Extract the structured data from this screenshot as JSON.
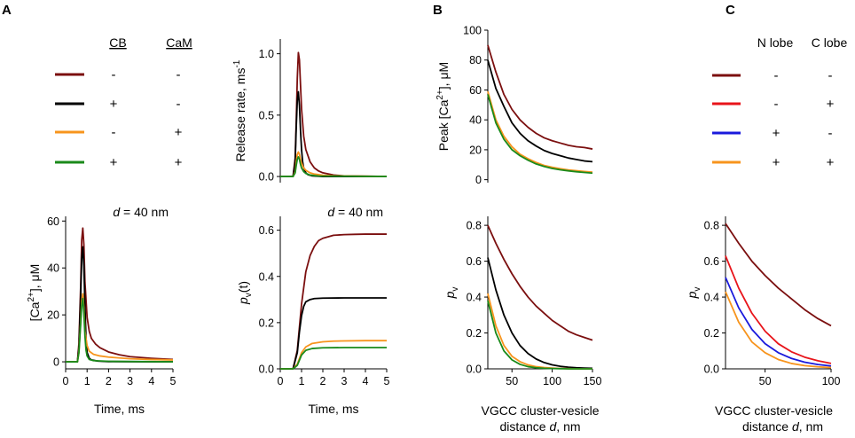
{
  "panels": {
    "A": "A",
    "B": "B",
    "C": "C"
  },
  "legendA": {
    "headers": [
      "CB",
      "CaM"
    ],
    "rows": [
      {
        "color": "#7b0f0f",
        "signs": [
          "-",
          "-"
        ]
      },
      {
        "color": "#000000",
        "signs": [
          "+",
          "-"
        ]
      },
      {
        "color": "#f7941d",
        "signs": [
          "-",
          "+"
        ]
      },
      {
        "color": "#1a8a1a",
        "signs": [
          "+",
          "+"
        ]
      }
    ]
  },
  "legendC": {
    "headers": [
      "N lobe",
      "C lobe"
    ],
    "rows": [
      {
        "color": "#7b0f0f",
        "signs": [
          "-",
          "-"
        ]
      },
      {
        "color": "#e8141a",
        "signs": [
          "-",
          "+"
        ]
      },
      {
        "color": "#1a1adc",
        "signs": [
          "+",
          "-"
        ]
      },
      {
        "color": "#f7941d",
        "signs": [
          "+",
          "+"
        ]
      }
    ]
  },
  "chart_data": [
    {
      "id": "ca",
      "type": "line",
      "annotation": {
        "italic": "d",
        "rest": " = 40 nm"
      },
      "xlabel": "Time, ms",
      "ylabel": {
        "main": "[Ca",
        "sup": "2+",
        "rest": "], μM"
      },
      "xlim": [
        0,
        5
      ],
      "ylim": [
        -3,
        62
      ],
      "xticks": [
        0,
        1,
        2,
        3,
        4,
        5
      ],
      "yticks": [
        0,
        20,
        40,
        60
      ],
      "series": [
        {
          "name": "CB- CaM-",
          "color": "#7b0f0f",
          "x": [
            0,
            0.55,
            0.62,
            0.7,
            0.75,
            0.8,
            0.85,
            0.9,
            1.0,
            1.1,
            1.2,
            1.4,
            1.6,
            2.0,
            2.5,
            3.0,
            4.0,
            5.0
          ],
          "y": [
            0,
            0,
            8,
            32,
            52,
            57,
            50,
            34,
            19,
            13,
            10,
            7.5,
            6,
            4.2,
            3,
            2.2,
            1.5,
            1
          ]
        },
        {
          "name": "CB+ CaM-",
          "color": "#000000",
          "x": [
            0,
            0.55,
            0.62,
            0.7,
            0.75,
            0.8,
            0.85,
            0.9,
            0.95,
            1.0,
            1.1,
            1.2,
            1.5,
            2.0,
            5.0
          ],
          "y": [
            0,
            0,
            6,
            28,
            44,
            49,
            41,
            24,
            10,
            4,
            1.5,
            0.8,
            0.3,
            0.1,
            0
          ]
        },
        {
          "name": "CB- CaM+",
          "color": "#f7941d",
          "x": [
            0,
            0.55,
            0.62,
            0.7,
            0.75,
            0.8,
            0.85,
            0.9,
            1.0,
            1.1,
            1.3,
            1.6,
            2.0,
            3.0,
            4.0,
            5.0
          ],
          "y": [
            0,
            0,
            4,
            17,
            26,
            29,
            23,
            13,
            7,
            4.5,
            3.2,
            2.5,
            2,
            1.3,
            1,
            0.8
          ]
        },
        {
          "name": "CB+ CaM+",
          "color": "#1a8a1a",
          "x": [
            0,
            0.55,
            0.62,
            0.7,
            0.75,
            0.8,
            0.85,
            0.9,
            0.95,
            1.0,
            1.1,
            1.3,
            2.0,
            5.0
          ],
          "y": [
            0,
            0,
            4,
            16,
            24,
            27,
            21,
            11,
            5,
            2.5,
            1,
            0.5,
            0.2,
            0
          ]
        }
      ]
    },
    {
      "id": "release",
      "type": "line",
      "xlabel": "",
      "ylabel": {
        "main": "Release rate, ms",
        "sup": "-1",
        "rest": ""
      },
      "xlim": [
        0,
        5
      ],
      "ylim": [
        -0.05,
        1.12
      ],
      "xticks": [],
      "yticks": [
        0.0,
        0.5,
        1.0
      ],
      "series": [
        {
          "name": "CB- CaM-",
          "color": "#7b0f0f",
          "x": [
            0,
            0.6,
            0.7,
            0.75,
            0.8,
            0.85,
            0.9,
            0.95,
            1.0,
            1.1,
            1.2,
            1.4,
            1.6,
            1.8,
            2.0,
            2.5,
            3.0,
            5.0
          ],
          "y": [
            0,
            0,
            0.15,
            0.45,
            0.8,
            1.01,
            0.95,
            0.75,
            0.55,
            0.33,
            0.22,
            0.12,
            0.07,
            0.045,
            0.03,
            0.012,
            0.005,
            0
          ]
        },
        {
          "name": "CB+ CaM-",
          "color": "#000000",
          "x": [
            0,
            0.6,
            0.7,
            0.75,
            0.8,
            0.85,
            0.9,
            0.95,
            1.0,
            1.05,
            1.1,
            1.2,
            1.3,
            1.5,
            2.0,
            5.0
          ],
          "y": [
            0,
            0,
            0.12,
            0.4,
            0.62,
            0.69,
            0.58,
            0.38,
            0.22,
            0.12,
            0.07,
            0.03,
            0.015,
            0.005,
            0,
            0
          ]
        },
        {
          "name": "CB- CaM+",
          "color": "#f7941d",
          "x": [
            0,
            0.6,
            0.7,
            0.75,
            0.8,
            0.85,
            0.9,
            0.95,
            1.0,
            1.1,
            1.2,
            1.4,
            1.6,
            2.0,
            2.5,
            5.0
          ],
          "y": [
            0,
            0,
            0.04,
            0.12,
            0.18,
            0.2,
            0.18,
            0.14,
            0.11,
            0.07,
            0.05,
            0.03,
            0.02,
            0.01,
            0.005,
            0
          ]
        },
        {
          "name": "CB+ CaM+",
          "color": "#1a8a1a",
          "x": [
            0,
            0.6,
            0.7,
            0.75,
            0.8,
            0.85,
            0.9,
            0.95,
            1.0,
            1.1,
            1.2,
            1.4,
            1.8,
            5.0
          ],
          "y": [
            0,
            0,
            0.03,
            0.09,
            0.14,
            0.16,
            0.14,
            0.1,
            0.07,
            0.04,
            0.025,
            0.012,
            0.004,
            0
          ]
        }
      ]
    },
    {
      "id": "pv_time",
      "type": "line",
      "annotation": {
        "italic": "d",
        "rest": " = 40 nm"
      },
      "xlabel": "Time, ms",
      "ylabel": {
        "main": "p",
        "sub": "v",
        "rest": "(t)"
      },
      "xlim": [
        0,
        5
      ],
      "ylim": [
        0,
        0.66
      ],
      "xticks": [
        0,
        1,
        2,
        3,
        4,
        5
      ],
      "yticks": [
        0.0,
        0.2,
        0.4,
        0.6
      ],
      "series": [
        {
          "name": "CB- CaM-",
          "color": "#7b0f0f",
          "x": [
            0,
            0.6,
            0.8,
            1.0,
            1.2,
            1.4,
            1.6,
            1.8,
            2.0,
            2.5,
            3.0,
            3.5,
            4.0,
            5.0
          ],
          "y": [
            0,
            0,
            0.08,
            0.28,
            0.42,
            0.49,
            0.53,
            0.555,
            0.565,
            0.578,
            0.581,
            0.582,
            0.583,
            0.583
          ]
        },
        {
          "name": "CB+ CaM-",
          "color": "#000000",
          "x": [
            0,
            0.6,
            0.8,
            0.9,
            1.0,
            1.1,
            1.2,
            1.4,
            1.6,
            2.0,
            3.0,
            5.0
          ],
          "y": [
            0,
            0,
            0.07,
            0.16,
            0.23,
            0.27,
            0.29,
            0.3,
            0.304,
            0.306,
            0.307,
            0.307
          ]
        },
        {
          "name": "CB- CaM+",
          "color": "#f7941d",
          "x": [
            0,
            0.6,
            0.8,
            1.0,
            1.2,
            1.5,
            2.0,
            2.5,
            3.0,
            4.0,
            5.0
          ],
          "y": [
            0,
            0,
            0.02,
            0.07,
            0.095,
            0.11,
            0.117,
            0.12,
            0.121,
            0.122,
            0.122
          ]
        },
        {
          "name": "CB+ CaM+",
          "color": "#1a8a1a",
          "x": [
            0,
            0.6,
            0.8,
            1.0,
            1.2,
            1.5,
            2.0,
            3.0,
            5.0
          ],
          "y": [
            0,
            0,
            0.015,
            0.06,
            0.08,
            0.088,
            0.091,
            0.092,
            0.092
          ]
        }
      ]
    },
    {
      "id": "peak_ca",
      "type": "line",
      "xlabel": "",
      "ylabel": {
        "main": "Peak [Ca",
        "sup": "2+",
        "rest": "], μM"
      },
      "xlim": [
        20,
        150
      ],
      "ylim": [
        -2,
        100
      ],
      "xticks": [],
      "yticks": [
        0,
        20,
        40,
        60,
        80,
        100
      ],
      "series": [
        {
          "name": "CB- CaM-",
          "color": "#7b0f0f",
          "x": [
            20,
            30,
            40,
            50,
            60,
            70,
            80,
            90,
            100,
            110,
            120,
            130,
            140,
            150
          ],
          "y": [
            90,
            72,
            57,
            47,
            40,
            35,
            31,
            28,
            26,
            24.5,
            23,
            22,
            21.5,
            20.5
          ]
        },
        {
          "name": "CB+ CaM-",
          "color": "#000000",
          "x": [
            20,
            30,
            40,
            50,
            60,
            70,
            80,
            90,
            100,
            110,
            120,
            130,
            140,
            150
          ],
          "y": [
            80,
            61,
            49,
            38,
            31,
            26,
            22.5,
            19.5,
            17.5,
            16,
            14.5,
            13.5,
            12.5,
            12
          ]
        },
        {
          "name": "CB- CaM+",
          "color": "#f7941d",
          "x": [
            20,
            30,
            40,
            50,
            60,
            70,
            80,
            90,
            100,
            110,
            120,
            130,
            140,
            150
          ],
          "y": [
            59,
            40,
            29,
            22,
            17,
            14,
            11.5,
            9.5,
            8.3,
            7.3,
            6.5,
            6,
            5.5,
            5
          ]
        },
        {
          "name": "CB+ CaM+",
          "color": "#1a8a1a",
          "x": [
            20,
            30,
            40,
            50,
            60,
            70,
            80,
            90,
            100,
            110,
            120,
            130,
            140,
            150
          ],
          "y": [
            57,
            38,
            27,
            20,
            16,
            13,
            10.5,
            8.8,
            7.5,
            6.6,
            5.9,
            5.3,
            4.8,
            4.4
          ]
        }
      ]
    },
    {
      "id": "pv_distance_B",
      "type": "line",
      "xlabel": "VGCC cluster-vesicle distance d, nm",
      "ylabel": {
        "main": "p",
        "sub": "v",
        "rest": ""
      },
      "xlim": [
        20,
        150
      ],
      "ylim": [
        0,
        0.85
      ],
      "xticks": [
        50,
        100,
        150
      ],
      "yticks": [
        0.0,
        0.2,
        0.4,
        0.6,
        0.8
      ],
      "series": [
        {
          "name": "CB- CaM-",
          "color": "#7b0f0f",
          "x": [
            20,
            30,
            40,
            50,
            60,
            70,
            80,
            90,
            100,
            110,
            120,
            130,
            140,
            150
          ],
          "y": [
            0.8,
            0.7,
            0.61,
            0.53,
            0.46,
            0.4,
            0.35,
            0.31,
            0.27,
            0.24,
            0.21,
            0.19,
            0.175,
            0.16
          ]
        },
        {
          "name": "CB+ CaM-",
          "color": "#000000",
          "x": [
            20,
            30,
            40,
            50,
            60,
            70,
            80,
            90,
            100,
            110,
            120,
            130,
            140,
            150
          ],
          "y": [
            0.62,
            0.44,
            0.3,
            0.2,
            0.13,
            0.085,
            0.055,
            0.035,
            0.022,
            0.014,
            0.009,
            0.006,
            0.004,
            0.003
          ]
        },
        {
          "name": "CB- CaM+",
          "color": "#f7941d",
          "x": [
            20,
            30,
            40,
            50,
            60,
            70,
            80,
            90,
            100,
            110,
            120,
            130,
            140,
            150
          ],
          "y": [
            0.42,
            0.24,
            0.13,
            0.07,
            0.04,
            0.022,
            0.012,
            0.007,
            0.004,
            0.002,
            0.001,
            0,
            0,
            0
          ]
        },
        {
          "name": "CB+ CaM+",
          "color": "#1a8a1a",
          "x": [
            20,
            30,
            40,
            50,
            60,
            70,
            80,
            90,
            100,
            110,
            120,
            130,
            140,
            150
          ],
          "y": [
            0.38,
            0.2,
            0.1,
            0.05,
            0.025,
            0.012,
            0.006,
            0.003,
            0.002,
            0.001,
            0,
            0,
            0,
            0
          ]
        }
      ]
    },
    {
      "id": "pv_distance_C",
      "type": "line",
      "xlabel": "VGCC cluster-vesicle distance d, nm",
      "ylabel": {
        "main": "p",
        "sub": "v",
        "rest": ""
      },
      "xlim": [
        20,
        100
      ],
      "ylim": [
        0,
        0.85
      ],
      "xticks": [
        50,
        100
      ],
      "yticks": [
        0.0,
        0.2,
        0.4,
        0.6,
        0.8
      ],
      "series": [
        {
          "name": "N- C-",
          "color": "#7b0f0f",
          "x": [
            20,
            30,
            40,
            50,
            60,
            70,
            80,
            90,
            100
          ],
          "y": [
            0.81,
            0.7,
            0.6,
            0.52,
            0.45,
            0.39,
            0.33,
            0.28,
            0.24
          ]
        },
        {
          "name": "N- C+",
          "color": "#e8141a",
          "x": [
            20,
            30,
            40,
            50,
            60,
            70,
            80,
            90,
            100
          ],
          "y": [
            0.63,
            0.45,
            0.31,
            0.21,
            0.14,
            0.095,
            0.065,
            0.045,
            0.03
          ]
        },
        {
          "name": "N+ C-",
          "color": "#1a1adc",
          "x": [
            20,
            30,
            40,
            50,
            60,
            70,
            80,
            90,
            100
          ],
          "y": [
            0.51,
            0.34,
            0.22,
            0.14,
            0.09,
            0.058,
            0.037,
            0.024,
            0.016
          ]
        },
        {
          "name": "N+ C+",
          "color": "#f7941d",
          "x": [
            20,
            30,
            40,
            50,
            60,
            70,
            80,
            90,
            100
          ],
          "y": [
            0.43,
            0.26,
            0.15,
            0.09,
            0.052,
            0.03,
            0.018,
            0.011,
            0.007
          ]
        }
      ]
    }
  ]
}
